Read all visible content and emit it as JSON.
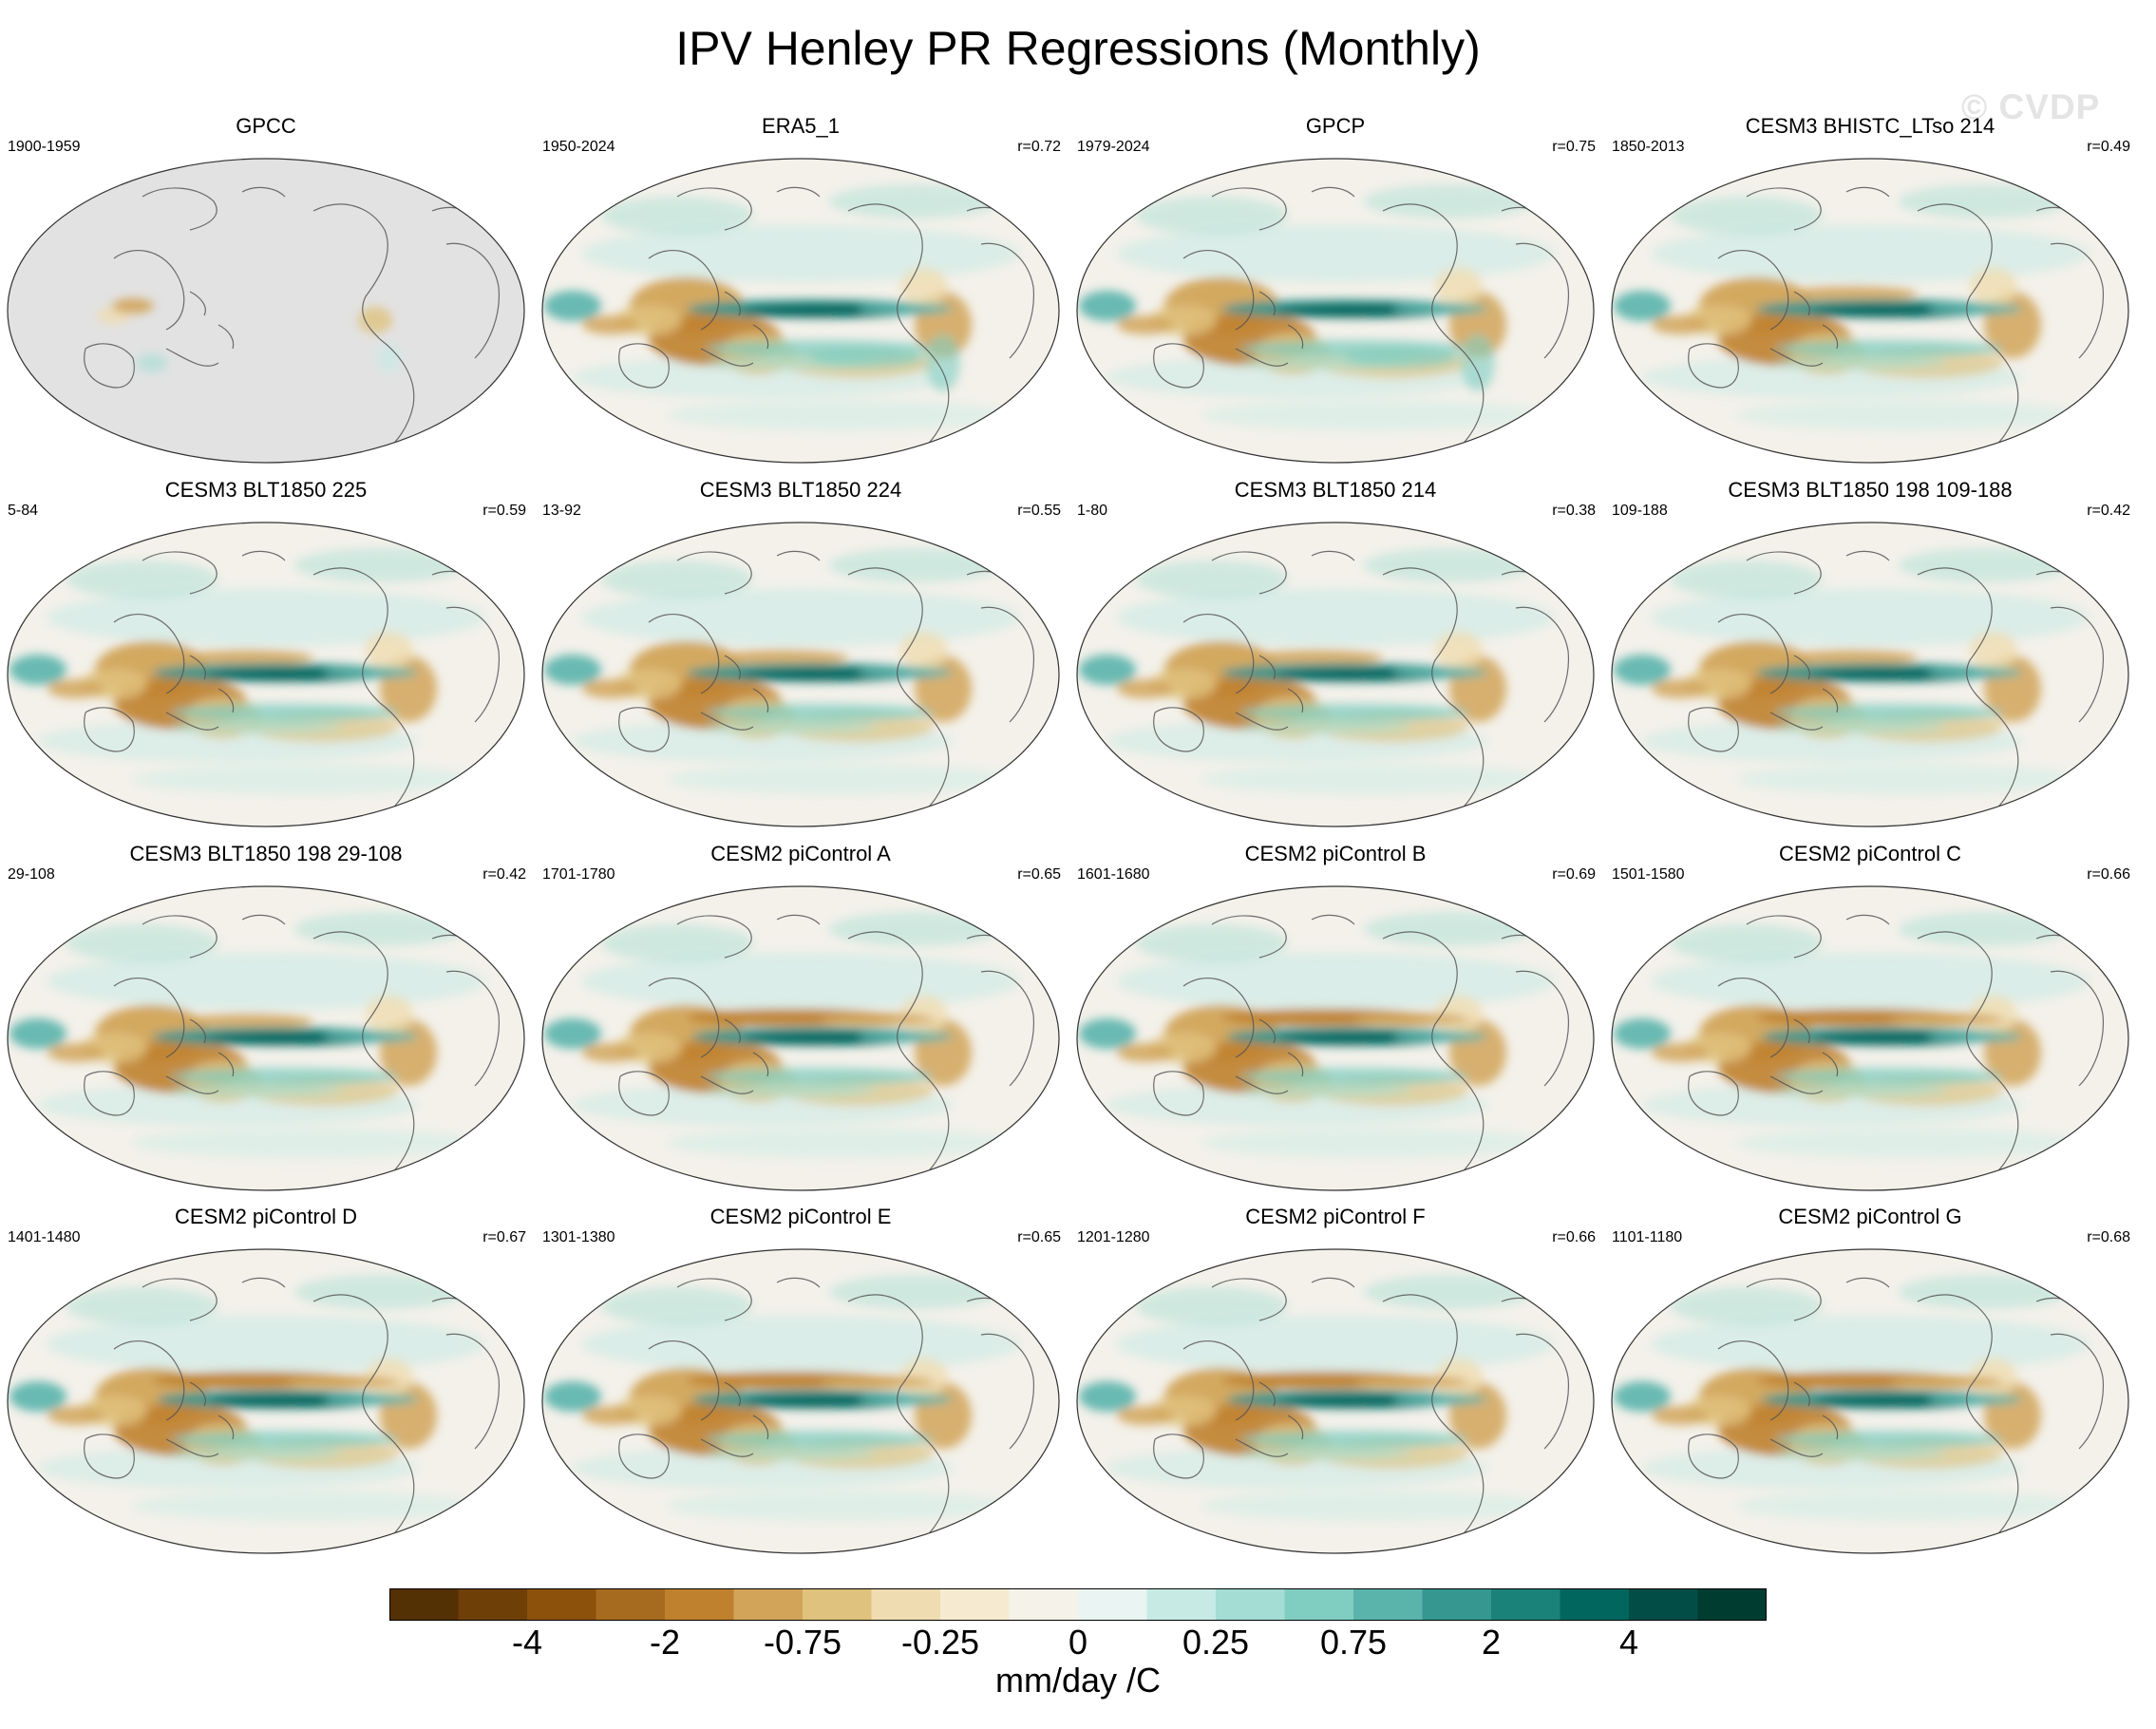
{
  "title": "IPV Henley PR Regressions (Monthly)",
  "watermark": "© CVDP",
  "panels": [
    {
      "name": "GPCC",
      "period": "1900-1959",
      "r": "",
      "style": "gpcc"
    },
    {
      "name": "ERA5_1",
      "period": "1950-2024",
      "r": "r=0.72",
      "style": "obs"
    },
    {
      "name": "GPCP",
      "period": "1979-2024",
      "r": "r=0.75",
      "style": "obs"
    },
    {
      "name": "CESM3 BHISTC_LTso 214",
      "period": "1850-2013",
      "r": "r=0.49",
      "style": "cesm3"
    },
    {
      "name": "CESM3 BLT1850 225",
      "period": "5-84",
      "r": "r=0.59",
      "style": "cesm3"
    },
    {
      "name": "CESM3 BLT1850 224",
      "period": "13-92",
      "r": "r=0.55",
      "style": "cesm3"
    },
    {
      "name": "CESM3 BLT1850 214",
      "period": "1-80",
      "r": "r=0.38",
      "style": "cesm3"
    },
    {
      "name": "CESM3 BLT1850 198 109-188",
      "period": "109-188",
      "r": "r=0.42",
      "style": "cesm3"
    },
    {
      "name": "CESM3 BLT1850 198 29-108",
      "period": "29-108",
      "r": "r=0.42",
      "style": "cesm3"
    },
    {
      "name": "CESM2 piControl A",
      "period": "1701-1780",
      "r": "r=0.65",
      "style": "cesm2"
    },
    {
      "name": "CESM2 piControl B",
      "period": "1601-1680",
      "r": "r=0.69",
      "style": "cesm2"
    },
    {
      "name": "CESM2 piControl C",
      "period": "1501-1580",
      "r": "r=0.66",
      "style": "cesm2"
    },
    {
      "name": "CESM2 piControl D",
      "period": "1401-1480",
      "r": "r=0.67",
      "style": "cesm2"
    },
    {
      "name": "CESM2 piControl E",
      "period": "1301-1380",
      "r": "r=0.65",
      "style": "cesm2"
    },
    {
      "name": "CESM2 piControl F",
      "period": "1201-1280",
      "r": "r=0.66",
      "style": "cesm2"
    },
    {
      "name": "CESM2 piControl G",
      "period": "1101-1180",
      "r": "r=0.68",
      "style": "cesm2"
    }
  ],
  "colorbar": {
    "colors": [
      "#543005",
      "#6f3f08",
      "#8c510a",
      "#a76b20",
      "#bf812d",
      "#d1a45a",
      "#dfc27d",
      "#efdcb0",
      "#f6ebd0",
      "#f5f2ea",
      "#eaf4f2",
      "#c7eae5",
      "#a3ddd3",
      "#80cdc1",
      "#5ab4ac",
      "#35978f",
      "#1a8278",
      "#01665e",
      "#024e46",
      "#003c30"
    ],
    "tick_labels": [
      "-4",
      "-2",
      "-0.75",
      "-0.25",
      "0",
      "0.25",
      "0.75",
      "2",
      "4"
    ],
    "units": "mm/day /C"
  }
}
